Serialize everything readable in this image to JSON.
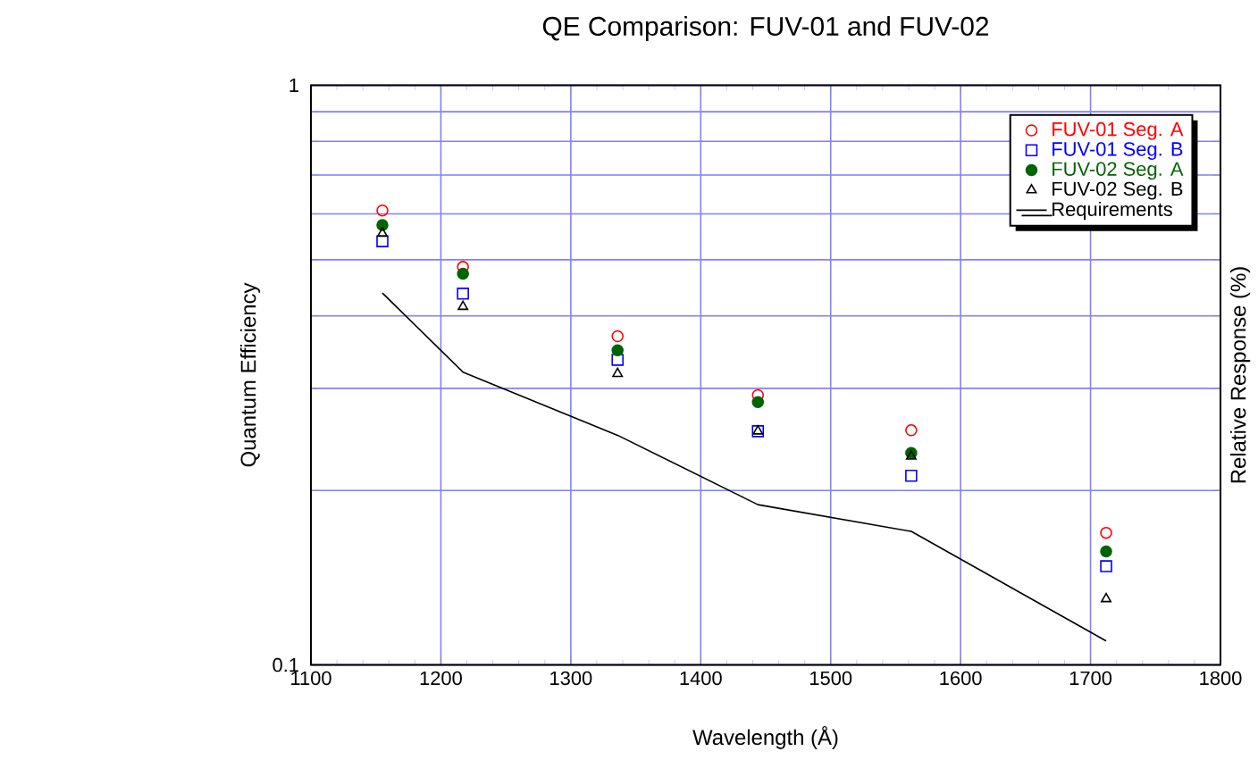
{
  "chart_data": {
    "type": "scatter",
    "title": "QE Comparison: FUV-01 and FUV-02",
    "xlabel": "Wavelength (Å)",
    "ylabel": "Quantum Efficiency",
    "y2label": "Relative Response (%)",
    "x": [
      1155,
      1217,
      1336,
      1444,
      1562,
      1712
    ],
    "series": [
      {
        "name": "FUV-01 Seg. A",
        "color": "#ff0000",
        "marker": "circle",
        "values": [
          0.608,
          0.486,
          0.369,
          0.292,
          0.254,
          0.169
        ]
      },
      {
        "name": "FUV-01 Seg. B",
        "color": "#0000ff",
        "marker": "square",
        "values": [
          0.538,
          0.437,
          0.336,
          0.253,
          0.212,
          0.148
        ]
      },
      {
        "name": "FUV-02 Seg. A",
        "color": "#006400",
        "marker": "filled circle",
        "values": [
          0.574,
          0.473,
          0.349,
          0.284,
          0.232,
          0.157
        ]
      },
      {
        "name": "FUV-02 Seg. B",
        "color": "#000000",
        "marker": "triangle",
        "values": [
          0.555,
          0.415,
          0.318,
          0.253,
          0.229,
          0.13
        ]
      },
      {
        "name": "Requirements",
        "type": "line",
        "color": "#000000",
        "marker": "none",
        "line_style": "solid",
        "values": [
          0.438,
          0.32,
          0.249,
          0.189,
          0.17,
          0.11
        ]
      }
    ],
    "log": "y",
    "xlim": [
      1100,
      1800
    ],
    "xticks": [
      1100,
      1200,
      1300,
      1400,
      1500,
      1600,
      1700,
      1800
    ],
    "ylim": [
      0.1,
      1
    ],
    "yticks": [
      0.1,
      {
        "value": 0.2,
        "label": null
      },
      {
        "value": 0.3,
        "label": null
      },
      {
        "value": 0.4,
        "label": null
      },
      {
        "value": 0.5,
        "label": null
      },
      {
        "value": 0.6,
        "label": null
      },
      {
        "value": 0.7,
        "label": null
      },
      {
        "value": 0.8,
        "label": null
      },
      {
        "value": 0.9,
        "label": null
      },
      1
    ],
    "grid": true,
    "legend": "top right"
  }
}
